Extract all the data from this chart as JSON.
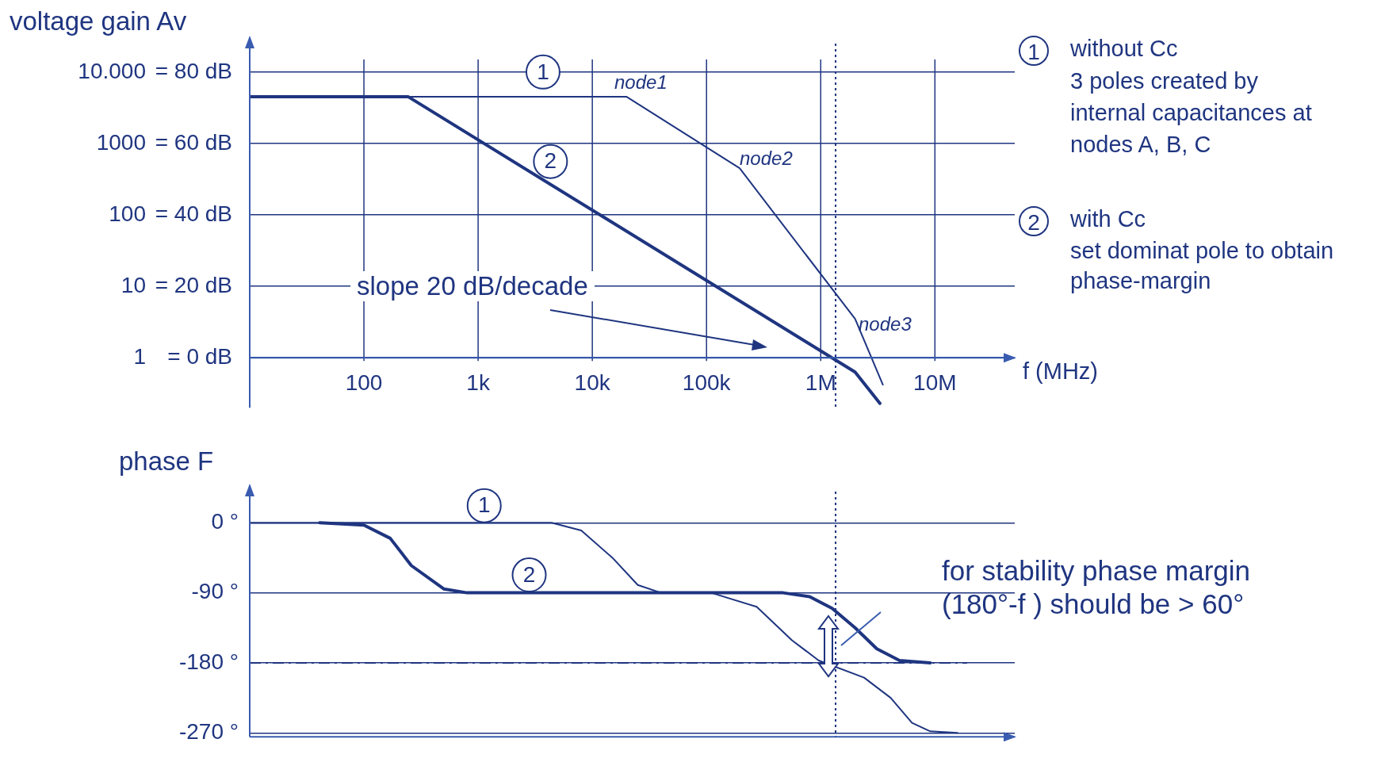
{
  "chart_data": [
    {
      "type": "line",
      "log": "xy",
      "ylabel": "voltage gain   Av",
      "xlabel": "f (MHz)",
      "grid": true,
      "legend": false,
      "marker": "none",
      "xlim": [
        10,
        50000000
      ],
      "xticks": [
        {
          "value": 100,
          "label": "100"
        },
        {
          "value": 1000,
          "label": "1k"
        },
        {
          "value": 10000,
          "label": "10k"
        },
        {
          "value": 100000,
          "label": "100k"
        },
        {
          "value": 1000000,
          "label": "1M"
        },
        {
          "value": 10000000,
          "label": "10M"
        }
      ],
      "ylim": [
        0.2,
        25000
      ],
      "yticks": [
        1,
        10,
        100,
        1000,
        {
          "value": 10000,
          "label": "10.000"
        }
      ],
      "y2lim": [
        -14,
        88
      ],
      "y2ticks": [
        {
          "value": 0,
          "label": "= 0 dB"
        },
        {
          "value": 20,
          "label": "= 20 dB"
        },
        {
          "value": 40,
          "label": "= 40 dB"
        },
        {
          "value": 60,
          "label": "= 60 dB"
        },
        {
          "value": 80,
          "label": "= 80 dB"
        }
      ],
      "series": [
        {
          "color": "#1f3580",
          "x": [
            10,
            20000,
            195000,
            2000000,
            3500000
          ],
          "values": [
            4500,
            4500,
            450,
            3.5,
            0.42
          ]
        },
        {
          "color": "#1f3580",
          "x": [
            10,
            245,
            2000000,
            3300000
          ],
          "values": [
            4500,
            4500,
            0.63,
            0.23
          ]
        }
      ],
      "ref_lines": [
        {
          "axis": "x",
          "value": 1350000,
          "line_style": "dotted",
          "color": "#1f3580"
        }
      ],
      "annotations": [
        {
          "text": "1",
          "x": 3700,
          "y": 10000
        },
        {
          "text": "2",
          "x": 4300,
          "y": 560
        },
        "node1",
        "node2",
        "node3",
        "slope 20 dB/decade",
        "1",
        "without Cc",
        "3 poles created by",
        "internal capacitances at",
        "nodes A, B, C",
        "2",
        "with Cc",
        "set dominat pole to obtain",
        "phase-margin"
      ]
    },
    {
      "type": "line",
      "log": "x",
      "ylabel": "phase  F",
      "grid": "y",
      "legend": false,
      "marker": "none",
      "tick_labels": "y",
      "xlim": [
        10,
        50000000
      ],
      "ylim": [
        -275,
        40
      ],
      "yticks": [
        {
          "value": 0,
          "label": "0 °"
        },
        {
          "value": -90,
          "label": "-90 °"
        },
        {
          "value": -180,
          "label": "-180 °"
        },
        {
          "value": -270,
          "label": "-270 °"
        }
      ],
      "series": [
        {
          "color": "#1f3580",
          "x": [
            10,
            4400,
            8000,
            15000,
            25000,
            40000,
            110000,
            275000,
            560000,
            960000,
            2400000,
            4100000,
            6300000,
            9100000,
            15800000
          ],
          "values": [
            0,
            0,
            -10,
            -45,
            -80,
            -90,
            -90,
            -108,
            -151,
            -177,
            -199,
            -225,
            -257,
            -268,
            -270
          ]
        },
        {
          "color": "#1f3580",
          "x": [
            41,
            100,
            170,
            260,
            500,
            800,
            468000,
            800000,
            1260000,
            2000000,
            3100000,
            4900000,
            9100000
          ],
          "values": [
            0,
            -3,
            -20,
            -55,
            -85,
            -90,
            -90,
            -95,
            -110,
            -135,
            -162,
            -177,
            -180
          ]
        }
      ],
      "ref_lines": [
        {
          "axis": "y",
          "value": -180,
          "line_style": "dashed",
          "color": "#1f3580"
        },
        {
          "axis": "x",
          "value": 1350000,
          "line_style": "dotted",
          "color": "#1f3580"
        }
      ],
      "annotations": [
        {
          "text": "1",
          "x": 1130,
          "y": 22
        },
        {
          "text": "2",
          "x": 2800,
          "y": -67
        },
        "for stability phase margin",
        "(180°-f ) should be > 60°"
      ]
    }
  ]
}
